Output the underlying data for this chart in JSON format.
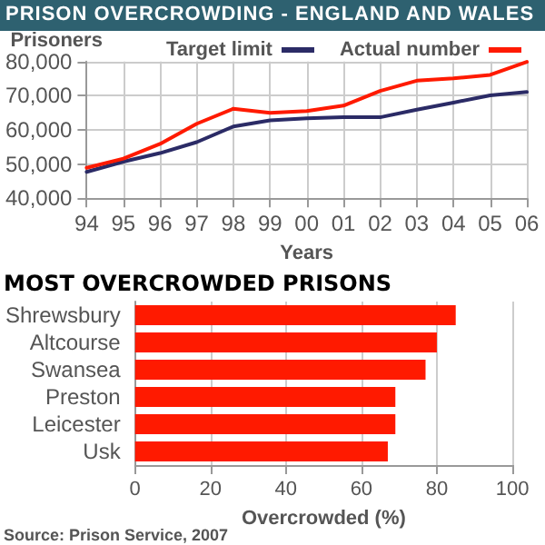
{
  "chart_data": [
    {
      "type": "line",
      "title": "PRISON OVERCROWDING - ENGLAND AND WALES",
      "ylabel": "Prisoners",
      "xlabel": "Years",
      "categories": [
        "94",
        "95",
        "96",
        "97",
        "98",
        "99",
        "00",
        "01",
        "02",
        "03",
        "04",
        "05",
        "06"
      ],
      "series": [
        {
          "name": "Target limit",
          "color": "#2b2b66",
          "values": [
            47700,
            50700,
            53200,
            56400,
            61000,
            62800,
            63400,
            63700,
            63700,
            65900,
            68000,
            70100,
            71100
          ]
        },
        {
          "name": "Actual number",
          "color": "#ff1a00",
          "values": [
            48900,
            51600,
            55900,
            61800,
            66200,
            65000,
            65500,
            67100,
            71400,
            74400,
            75100,
            76100,
            79900
          ]
        }
      ],
      "ylim": [
        40000,
        80000
      ],
      "yticks": [
        {
          "value": 40000,
          "label": "40,000"
        },
        {
          "value": 50000,
          "label": "50,000"
        },
        {
          "value": 60000,
          "label": "60,000"
        },
        {
          "value": 70000,
          "label": "70,000"
        },
        {
          "value": 80000,
          "label": "80,000"
        }
      ],
      "grid": true,
      "legend": "top right"
    },
    {
      "type": "bar",
      "orientation": "horizontal",
      "title": "MOST OVERCROWDED PRISONS",
      "xlabel": "Overcrowded (%)",
      "categories": [
        "Shrewsbury",
        "Altcourse",
        "Swansea",
        "Preston",
        "Leicester",
        "Usk"
      ],
      "values": [
        85,
        80,
        77,
        69,
        69,
        67
      ],
      "color": "#ff1a00",
      "xlim": [
        0,
        100
      ],
      "xticks": [
        0,
        20,
        40,
        60,
        80,
        100
      ],
      "grid": "x",
      "annotations": [
        "Source: Prison Service, 2007"
      ]
    }
  ]
}
